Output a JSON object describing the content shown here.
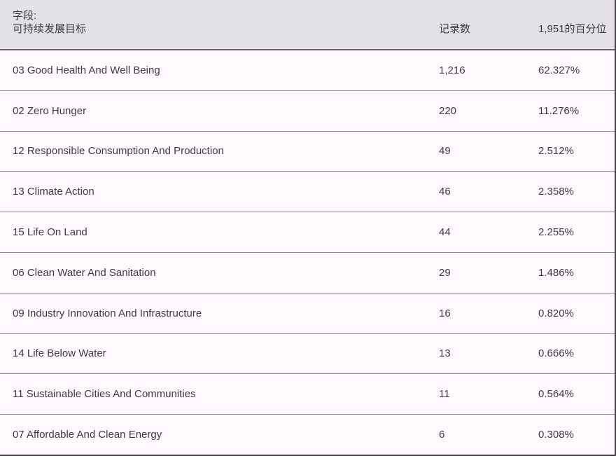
{
  "table": {
    "header": {
      "field_label_line1": "字段:",
      "field_label_line2": "可持续发展目标",
      "records_label": "记录数",
      "percent_label": "1,951的百分位"
    },
    "rows": [
      {
        "label": "03 Good Health And Well Being",
        "records": "1,216",
        "percent": "62.327%"
      },
      {
        "label": "02 Zero Hunger",
        "records": "220",
        "percent": "11.276%"
      },
      {
        "label": "12 Responsible Consumption And Production",
        "records": "49",
        "percent": "2.512%"
      },
      {
        "label": "13 Climate Action",
        "records": "46",
        "percent": "2.358%"
      },
      {
        "label": "15 Life On Land",
        "records": "44",
        "percent": "2.255%"
      },
      {
        "label": "06 Clean Water And Sanitation",
        "records": "29",
        "percent": "1.486%"
      },
      {
        "label": "09 Industry Innovation And Infrastructure",
        "records": "16",
        "percent": "0.820%"
      },
      {
        "label": "14 Life Below Water",
        "records": "13",
        "percent": "0.666%"
      },
      {
        "label": "11 Sustainable Cities And Communities",
        "records": "11",
        "percent": "0.564%"
      },
      {
        "label": "07 Affordable And Clean Energy",
        "records": "6",
        "percent": "0.308%"
      }
    ]
  },
  "colors": {
    "header_bg": "#e3e0e7",
    "row_bg": "#fdf9fd",
    "row_divider": "#8f8895",
    "header_divider": "#6c6772",
    "outer_border": "#47424c",
    "text": "#3f3b44"
  }
}
